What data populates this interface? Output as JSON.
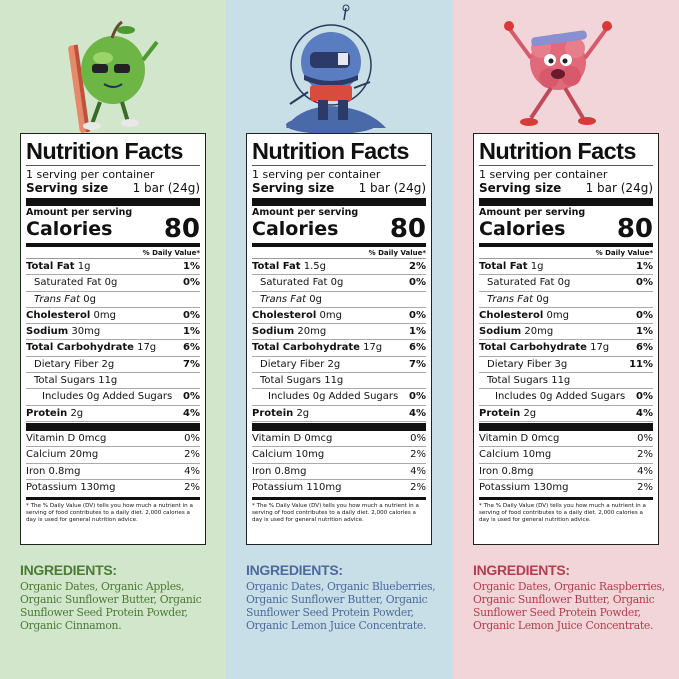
{
  "common": {
    "title": "Nutrition Facts",
    "servings": "1 serving per container",
    "serving_size_label": "Serving size",
    "serving_size_value": "1 bar (24g)",
    "amount_per_serving": "Amount per serving",
    "calories_label": "Calories",
    "daily_value_header": "% Daily Value*",
    "footnote": "* The % Daily Value (DV) tells you how much a nutrient in a serving of food contributes to a daily diet. 2,000 calories a day is used for general nutrition advice.",
    "ingredients_heading": "INGREDIENTS:"
  },
  "panels": [
    {
      "flavor_mascot": "apple-mascot",
      "background": "#d2e6cb",
      "accent": "#4a7c34",
      "calories": "80",
      "nutrients": [
        {
          "name": "Total Fat",
          "amount": "1g",
          "dv": "1%",
          "bold": true,
          "indent": 0
        },
        {
          "name": "Saturated Fat",
          "amount": "0g",
          "dv": "0%",
          "bold": false,
          "indent": 1
        },
        {
          "name": "Trans Fat",
          "amount": "0g",
          "dv": "",
          "bold": false,
          "indent": 1,
          "italic": true
        },
        {
          "name": "Cholesterol",
          "amount": "0mg",
          "dv": "0%",
          "bold": true,
          "indent": 0
        },
        {
          "name": "Sodium",
          "amount": "30mg",
          "dv": "1%",
          "bold": true,
          "indent": 0
        },
        {
          "name": "Total Carbohydrate",
          "amount": "17g",
          "dv": "6%",
          "bold": true,
          "indent": 0
        },
        {
          "name": "Dietary Fiber",
          "amount": "2g",
          "dv": "7%",
          "bold": false,
          "indent": 1
        },
        {
          "name": "Total Sugars",
          "amount": "11g",
          "dv": "",
          "bold": false,
          "indent": 1
        },
        {
          "name": "Includes 0g Added Sugars",
          "amount": "",
          "dv": "0%",
          "bold": false,
          "indent": 2
        },
        {
          "name": "Protein",
          "amount": "2g",
          "dv": "4%",
          "bold": true,
          "indent": 0
        }
      ],
      "vitamins": [
        {
          "name": "Vitamin D",
          "amount": "0mcg",
          "dv": "0%"
        },
        {
          "name": "Calcium",
          "amount": "20mg",
          "dv": "2%"
        },
        {
          "name": "Iron",
          "amount": "0.8mg",
          "dv": "4%"
        },
        {
          "name": "Potassium",
          "amount": "130mg",
          "dv": "2%"
        }
      ],
      "ingredients": "Organic Dates, Organic Apples, Organic Sunflower Butter, Organic Sunflower Seed Protein Powder, Organic Cinnamon."
    },
    {
      "flavor_mascot": "blueberry-astronaut-mascot",
      "background": "#c8dfe7",
      "accent": "#4d6a9c",
      "calories": "80",
      "nutrients": [
        {
          "name": "Total Fat",
          "amount": "1.5g",
          "dv": "2%",
          "bold": true,
          "indent": 0
        },
        {
          "name": "Saturated Fat",
          "amount": "0g",
          "dv": "0%",
          "bold": false,
          "indent": 1
        },
        {
          "name": "Trans Fat",
          "amount": "0g",
          "dv": "",
          "bold": false,
          "indent": 1,
          "italic": true
        },
        {
          "name": "Cholesterol",
          "amount": "0mg",
          "dv": "0%",
          "bold": true,
          "indent": 0
        },
        {
          "name": "Sodium",
          "amount": "20mg",
          "dv": "1%",
          "bold": true,
          "indent": 0
        },
        {
          "name": "Total Carbohydrate",
          "amount": "17g",
          "dv": "6%",
          "bold": true,
          "indent": 0
        },
        {
          "name": "Dietary Fiber",
          "amount": "2g",
          "dv": "7%",
          "bold": false,
          "indent": 1
        },
        {
          "name": "Total Sugars",
          "amount": "11g",
          "dv": "",
          "bold": false,
          "indent": 1
        },
        {
          "name": "Includes 0g Added Sugars",
          "amount": "",
          "dv": "0%",
          "bold": false,
          "indent": 2
        },
        {
          "name": "Protein",
          "amount": "2g",
          "dv": "4%",
          "bold": true,
          "indent": 0
        }
      ],
      "vitamins": [
        {
          "name": "Vitamin D",
          "amount": "0mcg",
          "dv": "0%"
        },
        {
          "name": "Calcium",
          "amount": "10mg",
          "dv": "2%"
        },
        {
          "name": "Iron",
          "amount": "0.8mg",
          "dv": "4%"
        },
        {
          "name": "Potassium",
          "amount": "110mg",
          "dv": "2%"
        }
      ],
      "ingredients": "Organic Dates, Organic Blueberries, Organic Sunflower Butter, Organic Sunflower Seed Protein Powder, Organic Lemon Juice Concentrate."
    },
    {
      "flavor_mascot": "raspberry-mascot",
      "background": "#f1d5d8",
      "accent": "#b0404f",
      "calories": "80",
      "nutrients": [
        {
          "name": "Total Fat",
          "amount": "1g",
          "dv": "1%",
          "bold": true,
          "indent": 0
        },
        {
          "name": "Saturated Fat",
          "amount": "0g",
          "dv": "0%",
          "bold": false,
          "indent": 1
        },
        {
          "name": "Trans Fat",
          "amount": "0g",
          "dv": "",
          "bold": false,
          "indent": 1,
          "italic": true
        },
        {
          "name": "Cholesterol",
          "amount": "0mg",
          "dv": "0%",
          "bold": true,
          "indent": 0
        },
        {
          "name": "Sodium",
          "amount": "20mg",
          "dv": "1%",
          "bold": true,
          "indent": 0
        },
        {
          "name": "Total Carbohydrate",
          "amount": "17g",
          "dv": "6%",
          "bold": true,
          "indent": 0
        },
        {
          "name": "Dietary Fiber",
          "amount": "3g",
          "dv": "11%",
          "bold": false,
          "indent": 1
        },
        {
          "name": "Total Sugars",
          "amount": "11g",
          "dv": "",
          "bold": false,
          "indent": 1
        },
        {
          "name": "Includes 0g Added Sugars",
          "amount": "",
          "dv": "0%",
          "bold": false,
          "indent": 2
        },
        {
          "name": "Protein",
          "amount": "2g",
          "dv": "4%",
          "bold": true,
          "indent": 0
        }
      ],
      "vitamins": [
        {
          "name": "Vitamin D",
          "amount": "0mcg",
          "dv": "0%"
        },
        {
          "name": "Calcium",
          "amount": "10mg",
          "dv": "2%"
        },
        {
          "name": "Iron",
          "amount": "0.8mg",
          "dv": "4%"
        },
        {
          "name": "Potassium",
          "amount": "130mg",
          "dv": "2%"
        }
      ],
      "ingredients": "Organic Dates, Organic Raspberries, Organic Sunflower Butter, Organic Sunflower Seed Protein Powder, Organic Lemon Juice Concentrate."
    }
  ]
}
